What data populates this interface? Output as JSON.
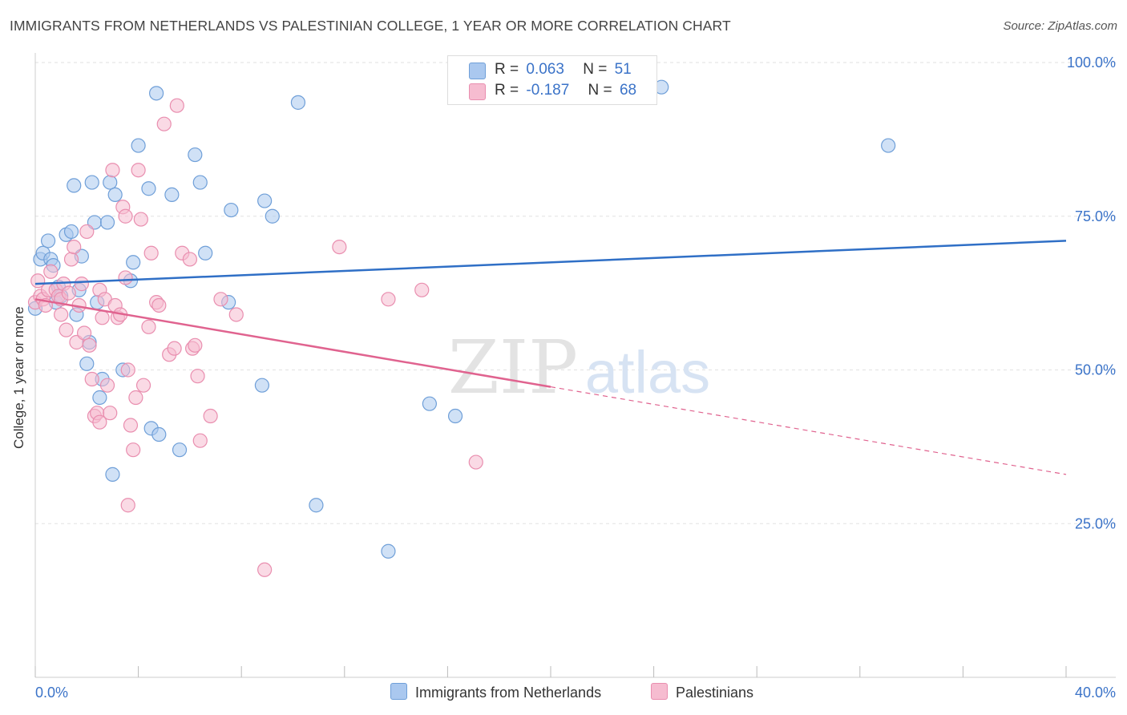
{
  "title": "IMMIGRANTS FROM NETHERLANDS VS PALESTINIAN COLLEGE, 1 YEAR OR MORE CORRELATION CHART",
  "source": "Source: ZipAtlas.com",
  "watermark": {
    "zip": "ZIP",
    "atlas": "atlas"
  },
  "legend": {
    "rows": [
      {
        "r_label": "R =",
        "r_value": "0.063",
        "n_label": "N =",
        "n_value": "51"
      },
      {
        "r_label": "R =",
        "r_value": "-0.187",
        "n_label": "N =",
        "n_value": "68"
      }
    ]
  },
  "colors": {
    "blue_fill": "#aac8ef",
    "blue_stroke": "#6f9fd8",
    "blue_line": "#2f6fc6",
    "pink_fill": "#f6bcd0",
    "pink_stroke": "#e98eaf",
    "pink_line": "#e0638f",
    "axis_text": "#3b73c8",
    "grid": "#e2e2e2"
  },
  "chart_data": {
    "type": "scatter",
    "title": "IMMIGRANTS FROM NETHERLANDS VS PALESTINIAN COLLEGE, 1 YEAR OR MORE CORRELATION CHART",
    "xlabel": "",
    "ylabel": "College, 1 year or more",
    "xlim": [
      0,
      40
    ],
    "ylim": [
      0,
      100
    ],
    "x_tick_labels": [
      "0.0%",
      "40.0%"
    ],
    "y_ticks": [
      25,
      50,
      75,
      100
    ],
    "y_tick_labels": [
      "25.0%",
      "50.0%",
      "75.0%",
      "100.0%"
    ],
    "grid": true,
    "legend_placement": "top-center",
    "series": [
      {
        "name": "Immigrants from Netherlands",
        "color": "#aac8ef",
        "R": 0.063,
        "N": 51,
        "trend": {
          "x": [
            0,
            40
          ],
          "y": [
            64.0,
            71.0
          ],
          "dashed_from": null
        },
        "points": [
          [
            0.0,
            60.0
          ],
          [
            0.2,
            68.0
          ],
          [
            0.3,
            69.0
          ],
          [
            0.5,
            71.0
          ],
          [
            0.6,
            68.0
          ],
          [
            0.7,
            67.0
          ],
          [
            0.8,
            61.0
          ],
          [
            0.9,
            63.5
          ],
          [
            1.0,
            62.0
          ],
          [
            1.2,
            72.0
          ],
          [
            1.4,
            72.5
          ],
          [
            1.5,
            80.0
          ],
          [
            1.6,
            59.0
          ],
          [
            1.7,
            63.0
          ],
          [
            1.8,
            68.5
          ],
          [
            2.0,
            51.0
          ],
          [
            2.1,
            54.5
          ],
          [
            2.2,
            80.5
          ],
          [
            2.3,
            74.0
          ],
          [
            2.5,
            45.5
          ],
          [
            2.6,
            48.5
          ],
          [
            2.4,
            61.0
          ],
          [
            2.8,
            74.0
          ],
          [
            2.9,
            80.5
          ],
          [
            3.1,
            78.5
          ],
          [
            3.0,
            33.0
          ],
          [
            3.4,
            50.0
          ],
          [
            3.8,
            67.5
          ],
          [
            3.7,
            64.5
          ],
          [
            4.0,
            86.5
          ],
          [
            4.4,
            79.5
          ],
          [
            4.5,
            40.5
          ],
          [
            4.7,
            95.0
          ],
          [
            4.8,
            39.5
          ],
          [
            5.3,
            78.5
          ],
          [
            5.6,
            37.0
          ],
          [
            6.2,
            85.0
          ],
          [
            6.4,
            80.5
          ],
          [
            6.6,
            69.0
          ],
          [
            7.5,
            61.0
          ],
          [
            7.6,
            76.0
          ],
          [
            8.9,
            77.5
          ],
          [
            9.2,
            75.0
          ],
          [
            8.8,
            47.5
          ],
          [
            10.2,
            93.5
          ],
          [
            10.9,
            28.0
          ],
          [
            13.7,
            20.5
          ],
          [
            15.3,
            44.5
          ],
          [
            16.3,
            42.5
          ],
          [
            24.3,
            96.0
          ],
          [
            33.1,
            86.5
          ]
        ]
      },
      {
        "name": "Palestinians",
        "color": "#f6bcd0",
        "R": -0.187,
        "N": 68,
        "trend": {
          "x": [
            0,
            40
          ],
          "y": [
            61.5,
            33.0
          ],
          "dashed_from": 20
        },
        "points": [
          [
            0.0,
            61.0
          ],
          [
            0.1,
            64.5
          ],
          [
            0.2,
            62.0
          ],
          [
            0.3,
            61.5
          ],
          [
            0.4,
            60.5
          ],
          [
            0.5,
            63.0
          ],
          [
            0.6,
            66.0
          ],
          [
            0.8,
            63.0
          ],
          [
            0.9,
            62.0
          ],
          [
            1.0,
            61.5
          ],
          [
            1.0,
            59.0
          ],
          [
            1.1,
            64.0
          ],
          [
            1.2,
            56.5
          ],
          [
            1.3,
            62.5
          ],
          [
            1.4,
            68.0
          ],
          [
            1.5,
            70.0
          ],
          [
            1.6,
            54.5
          ],
          [
            1.7,
            60.5
          ],
          [
            1.8,
            64.0
          ],
          [
            1.9,
            56.0
          ],
          [
            2.0,
            72.5
          ],
          [
            2.1,
            54.0
          ],
          [
            2.2,
            48.5
          ],
          [
            2.3,
            42.5
          ],
          [
            2.4,
            43.0
          ],
          [
            2.5,
            41.5
          ],
          [
            2.5,
            63.0
          ],
          [
            2.6,
            58.5
          ],
          [
            2.7,
            61.5
          ],
          [
            2.8,
            47.5
          ],
          [
            2.9,
            43.0
          ],
          [
            3.0,
            82.5
          ],
          [
            3.1,
            60.5
          ],
          [
            3.2,
            58.5
          ],
          [
            3.3,
            59.0
          ],
          [
            3.4,
            76.5
          ],
          [
            3.5,
            65.0
          ],
          [
            3.6,
            50.0
          ],
          [
            3.6,
            28.0
          ],
          [
            3.7,
            41.0
          ],
          [
            3.8,
            37.0
          ],
          [
            3.9,
            45.5
          ],
          [
            4.0,
            82.5
          ],
          [
            4.1,
            74.5
          ],
          [
            4.2,
            47.5
          ],
          [
            4.4,
            57.0
          ],
          [
            4.5,
            69.0
          ],
          [
            4.7,
            61.0
          ],
          [
            4.8,
            60.5
          ],
          [
            5.0,
            90.0
          ],
          [
            5.2,
            52.5
          ],
          [
            5.4,
            53.5
          ],
          [
            5.5,
            93.0
          ],
          [
            5.7,
            69.0
          ],
          [
            6.0,
            68.0
          ],
          [
            6.1,
            53.5
          ],
          [
            6.2,
            54.0
          ],
          [
            6.3,
            49.0
          ],
          [
            6.4,
            38.5
          ],
          [
            6.8,
            42.5
          ],
          [
            7.2,
            61.5
          ],
          [
            7.8,
            59.0
          ],
          [
            8.9,
            17.5
          ],
          [
            11.8,
            70.0
          ],
          [
            13.7,
            61.5
          ],
          [
            15.0,
            63.0
          ],
          [
            17.1,
            35.0
          ],
          [
            3.5,
            75.0
          ]
        ]
      }
    ]
  },
  "bottom_legend": [
    "Immigrants from Netherlands",
    "Palestinians"
  ]
}
